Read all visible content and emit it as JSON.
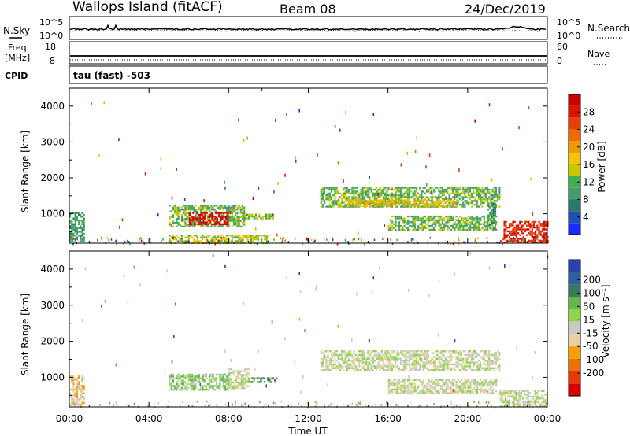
{
  "header": {
    "station": "Wallops Island (fitACF)",
    "beam": "Beam 08",
    "date": "24/Dec/2019"
  },
  "top_panels": {
    "nsky_label": "N.Sky",
    "nsky_ticks": [
      "10^5",
      "10^0"
    ],
    "nsearch_label": "N.Search",
    "nsearch_ticks": [
      "10^5",
      "10^0"
    ],
    "freq_label_1": "Freq.",
    "freq_label_2": "[MHz]",
    "freq_ticks": [
      "18",
      "8"
    ],
    "nave_label": "Nave",
    "nave_ticks": [
      "60",
      "0"
    ],
    "cpid_label": "CPID",
    "cpid_value": "tau (fast) -503"
  },
  "colors": {
    "power": [
      "#1a2cff",
      "#1f4fb8",
      "#2a7a6a",
      "#4a9a6e",
      "#3fae4e",
      "#c8c800",
      "#f4c400",
      "#f39a00",
      "#f06a00",
      "#e84000",
      "#dd1500",
      "#cc0000"
    ],
    "velocity": [
      "#2e3fb0",
      "#2e5fa0",
      "#3a7a5a",
      "#62b84a",
      "#8fd44a",
      "#c9c9c4",
      "#e8d0a0",
      "#f5a000",
      "#f07000",
      "#e83a00",
      "#d80000"
    ]
  },
  "chart_data": [
    {
      "type": "heatmap",
      "name": "power",
      "ylabel": "Slant Range [km]",
      "yticks": [
        "1000",
        "2000",
        "3000",
        "4000"
      ],
      "ylim": [
        180,
        4500
      ],
      "xlim_hours": [
        0,
        24
      ],
      "colorbar_label": "Power [dB]",
      "colorbar_ticks": [
        "4",
        "8",
        "12",
        "16",
        "20",
        "24",
        "28"
      ],
      "colorbar_range": [
        0,
        32
      ],
      "echo_regions": [
        {
          "t0": 0.0,
          "t1": 0.7,
          "r0": 260,
          "r1": 1050,
          "level": 3
        },
        {
          "t0": 5.0,
          "t1": 8.8,
          "r0": 650,
          "r1": 1250,
          "level": 4
        },
        {
          "t0": 6.0,
          "t1": 8.0,
          "r0": 700,
          "r1": 1050,
          "level": 11
        },
        {
          "t0": 8.8,
          "t1": 10.4,
          "r0": 850,
          "r1": 1000,
          "level": 4
        },
        {
          "t0": 5.0,
          "t1": 10.0,
          "r0": 200,
          "r1": 420,
          "level": 5
        },
        {
          "t0": 12.6,
          "t1": 21.6,
          "r0": 1200,
          "r1": 1750,
          "level": 4
        },
        {
          "t0": 13.5,
          "t1": 19.5,
          "r0": 1200,
          "r1": 1400,
          "level": 6
        },
        {
          "t0": 16.0,
          "t1": 21.4,
          "r0": 550,
          "r1": 950,
          "level": 4
        },
        {
          "t0": 21.0,
          "t1": 21.4,
          "r0": 600,
          "r1": 1300,
          "level": 3
        },
        {
          "t0": 21.8,
          "t1": 24.0,
          "r0": 200,
          "r1": 800,
          "level": 10
        }
      ]
    },
    {
      "type": "heatmap",
      "name": "velocity",
      "ylabel": "Slant Range [km]",
      "xlabel": "Time UT",
      "xticks": [
        "00:00",
        "04:00",
        "08:00",
        "12:00",
        "16:00",
        "20:00",
        "00:00"
      ],
      "yticks": [
        "1000",
        "2000",
        "3000",
        "4000"
      ],
      "ylim": [
        180,
        4500
      ],
      "xlim_hours": [
        0,
        24
      ],
      "colorbar_label": "Velocity [m s⁻¹]",
      "colorbar_ticks": [
        "200",
        "100",
        "50",
        "15",
        "-15",
        "-50",
        "-100",
        "-200"
      ],
      "echo_regions": [
        {
          "t0": 0.0,
          "t1": 0.7,
          "r0": 260,
          "r1": 1050,
          "level": 6
        },
        {
          "t0": 5.0,
          "t1": 8.0,
          "r0": 650,
          "r1": 1100,
          "level": 4
        },
        {
          "t0": 8.0,
          "t1": 9.0,
          "r0": 700,
          "r1": 1250,
          "level": 5
        },
        {
          "t0": 8.8,
          "t1": 10.4,
          "r0": 850,
          "r1": 1000,
          "level": 3
        },
        {
          "t0": 12.6,
          "t1": 21.6,
          "r0": 1200,
          "r1": 1750,
          "level": 5
        },
        {
          "t0": 16.0,
          "t1": 21.4,
          "r0": 550,
          "r1": 950,
          "level": 5
        },
        {
          "t0": 21.6,
          "t1": 24.0,
          "r0": 200,
          "r1": 650,
          "level": 5
        }
      ]
    }
  ]
}
